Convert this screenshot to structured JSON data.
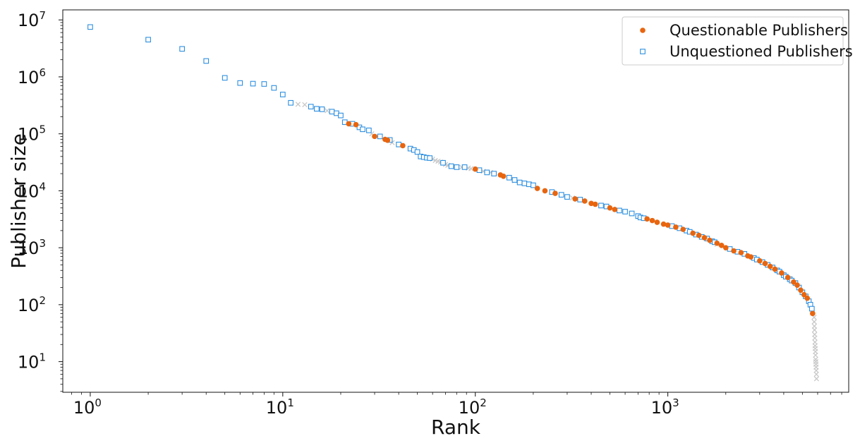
{
  "chart_data": {
    "type": "scatter",
    "title": "",
    "xlabel": "Rank",
    "ylabel": "Publisher size",
    "xscale": "log",
    "yscale": "log",
    "xlim": [
      0.72,
      8700
    ],
    "ylim": [
      2.9,
      15000000
    ],
    "x_ticks": [
      {
        "base": "10",
        "exp": "0",
        "value": 1
      },
      {
        "base": "10",
        "exp": "1",
        "value": 10
      },
      {
        "base": "10",
        "exp": "2",
        "value": 100
      },
      {
        "base": "10",
        "exp": "3",
        "value": 1000
      }
    ],
    "y_ticks": [
      {
        "base": "10",
        "exp": "1",
        "value": 10
      },
      {
        "base": "10",
        "exp": "2",
        "value": 100
      },
      {
        "base": "10",
        "exp": "3",
        "value": 1000
      },
      {
        "base": "10",
        "exp": "4",
        "value": 10000
      },
      {
        "base": "10",
        "exp": "5",
        "value": 100000
      },
      {
        "base": "10",
        "exp": "6",
        "value": 1000000
      },
      {
        "base": "10",
        "exp": "7",
        "value": 10000000
      }
    ],
    "legend_position": "top-right",
    "grid": false,
    "series": [
      {
        "name": "Questionable Publishers",
        "marker": "circle",
        "color": "#e8650f",
        "points": [
          [
            22,
            150000
          ],
          [
            24,
            145000
          ],
          [
            30,
            90000
          ],
          [
            34,
            80000
          ],
          [
            35,
            77000
          ],
          [
            42,
            62000
          ],
          [
            100,
            24000
          ],
          [
            135,
            19000
          ],
          [
            140,
            18000
          ],
          [
            210,
            11000
          ],
          [
            230,
            10000
          ],
          [
            260,
            9000
          ],
          [
            330,
            7200
          ],
          [
            370,
            6600
          ],
          [
            400,
            6000
          ],
          [
            420,
            5800
          ],
          [
            500,
            5000
          ],
          [
            530,
            4700
          ],
          [
            780,
            3200
          ],
          [
            830,
            3000
          ],
          [
            880,
            2800
          ],
          [
            950,
            2600
          ],
          [
            1000,
            2500
          ],
          [
            1100,
            2300
          ],
          [
            1200,
            2100
          ],
          [
            1350,
            1800
          ],
          [
            1450,
            1650
          ],
          [
            1550,
            1500
          ],
          [
            1650,
            1350
          ],
          [
            1800,
            1200
          ],
          [
            1900,
            1100
          ],
          [
            2000,
            1000
          ],
          [
            2200,
            880
          ],
          [
            2400,
            820
          ],
          [
            2600,
            720
          ],
          [
            2700,
            690
          ],
          [
            3000,
            590
          ],
          [
            3200,
            530
          ],
          [
            3400,
            470
          ],
          [
            3600,
            420
          ],
          [
            3900,
            360
          ],
          [
            4200,
            300
          ],
          [
            4500,
            250
          ],
          [
            4700,
            220
          ],
          [
            4900,
            180
          ],
          [
            5100,
            150
          ],
          [
            5300,
            130
          ],
          [
            5650,
            70
          ]
        ]
      },
      {
        "name": "Unquestioned Publishers",
        "marker": "square",
        "color": "#2d8fe0",
        "points": [
          [
            1,
            7500000
          ],
          [
            2,
            4500000
          ],
          [
            3,
            3100000
          ],
          [
            4,
            1900000
          ],
          [
            5,
            960000
          ],
          [
            6,
            780000
          ],
          [
            7,
            760000
          ],
          [
            8,
            750000
          ],
          [
            9,
            640000
          ],
          [
            10,
            490000
          ],
          [
            11,
            350000
          ],
          [
            14,
            300000
          ],
          [
            15,
            275000
          ],
          [
            16,
            270000
          ],
          [
            18,
            245000
          ],
          [
            19,
            230000
          ],
          [
            20,
            210000
          ],
          [
            21,
            160000
          ],
          [
            23,
            150000
          ],
          [
            25,
            130000
          ],
          [
            26,
            120000
          ],
          [
            28,
            115000
          ],
          [
            32,
            90000
          ],
          [
            36,
            78000
          ],
          [
            40,
            65000
          ],
          [
            46,
            55000
          ],
          [
            48,
            52000
          ],
          [
            50,
            48000
          ],
          [
            52,
            40000
          ],
          [
            54,
            39000
          ],
          [
            56,
            38000
          ],
          [
            58,
            37500
          ],
          [
            68,
            31000
          ],
          [
            75,
            27000
          ],
          [
            80,
            26000
          ],
          [
            88,
            26000
          ],
          [
            105,
            23000
          ],
          [
            115,
            21000
          ],
          [
            125,
            20000
          ],
          [
            150,
            17000
          ],
          [
            160,
            15500
          ],
          [
            170,
            14000
          ],
          [
            180,
            13500
          ],
          [
            190,
            13000
          ],
          [
            200,
            12500
          ],
          [
            250,
            9500
          ],
          [
            280,
            8500
          ],
          [
            300,
            7800
          ],
          [
            350,
            7000
          ],
          [
            450,
            5500
          ],
          [
            480,
            5300
          ],
          [
            560,
            4500
          ],
          [
            600,
            4300
          ],
          [
            650,
            4000
          ],
          [
            700,
            3600
          ],
          [
            720,
            3400
          ],
          [
            750,
            3300
          ],
          [
            1050,
            2400
          ],
          [
            1150,
            2200
          ],
          [
            1250,
            2000
          ],
          [
            1300,
            1900
          ],
          [
            1400,
            1700
          ],
          [
            1500,
            1550
          ],
          [
            1600,
            1450
          ],
          [
            1700,
            1300
          ],
          [
            1750,
            1250
          ],
          [
            2100,
            950
          ],
          [
            2300,
            850
          ],
          [
            2500,
            780
          ],
          [
            2800,
            660
          ],
          [
            2900,
            620
          ],
          [
            3100,
            560
          ],
          [
            3300,
            500
          ],
          [
            3500,
            450
          ],
          [
            3700,
            400
          ],
          [
            3800,
            380
          ],
          [
            4000,
            330
          ],
          [
            4100,
            310
          ],
          [
            4300,
            280
          ],
          [
            4400,
            265
          ],
          [
            4600,
            240
          ],
          [
            4800,
            200
          ],
          [
            5000,
            165
          ],
          [
            5200,
            140
          ],
          [
            5400,
            115
          ],
          [
            5500,
            100
          ],
          [
            5600,
            85
          ]
        ]
      },
      {
        "name": "",
        "marker": "x",
        "color": "#c8c8c8",
        "points": [
          [
            12,
            330000
          ],
          [
            13,
            325000
          ],
          [
            17,
            255000
          ],
          [
            29,
            100000
          ],
          [
            37,
            70000
          ],
          [
            60,
            36000
          ],
          [
            62,
            34000
          ],
          [
            64,
            33000
          ],
          [
            66,
            32000
          ],
          [
            70,
            29000
          ],
          [
            72,
            28000
          ],
          [
            78,
            26500
          ],
          [
            85,
            26000
          ],
          [
            92,
            25000
          ],
          [
            95,
            24500
          ],
          [
            110,
            22000
          ],
          [
            120,
            21000
          ],
          [
            160,
            15000
          ],
          [
            320,
            7500
          ],
          [
            700,
            3500
          ],
          [
            1800,
            1150
          ],
          [
            5750,
            60
          ],
          [
            5760,
            50
          ],
          [
            5770,
            42
          ],
          [
            5780,
            36
          ],
          [
            5790,
            30
          ],
          [
            5800,
            26
          ],
          [
            5810,
            22
          ],
          [
            5820,
            19
          ],
          [
            5830,
            17
          ],
          [
            5840,
            15
          ],
          [
            5850,
            13
          ],
          [
            5860,
            11
          ],
          [
            5870,
            10
          ],
          [
            5880,
            9
          ],
          [
            5890,
            8
          ],
          [
            5900,
            7
          ],
          [
            5910,
            6
          ],
          [
            5920,
            5
          ]
        ]
      }
    ]
  }
}
